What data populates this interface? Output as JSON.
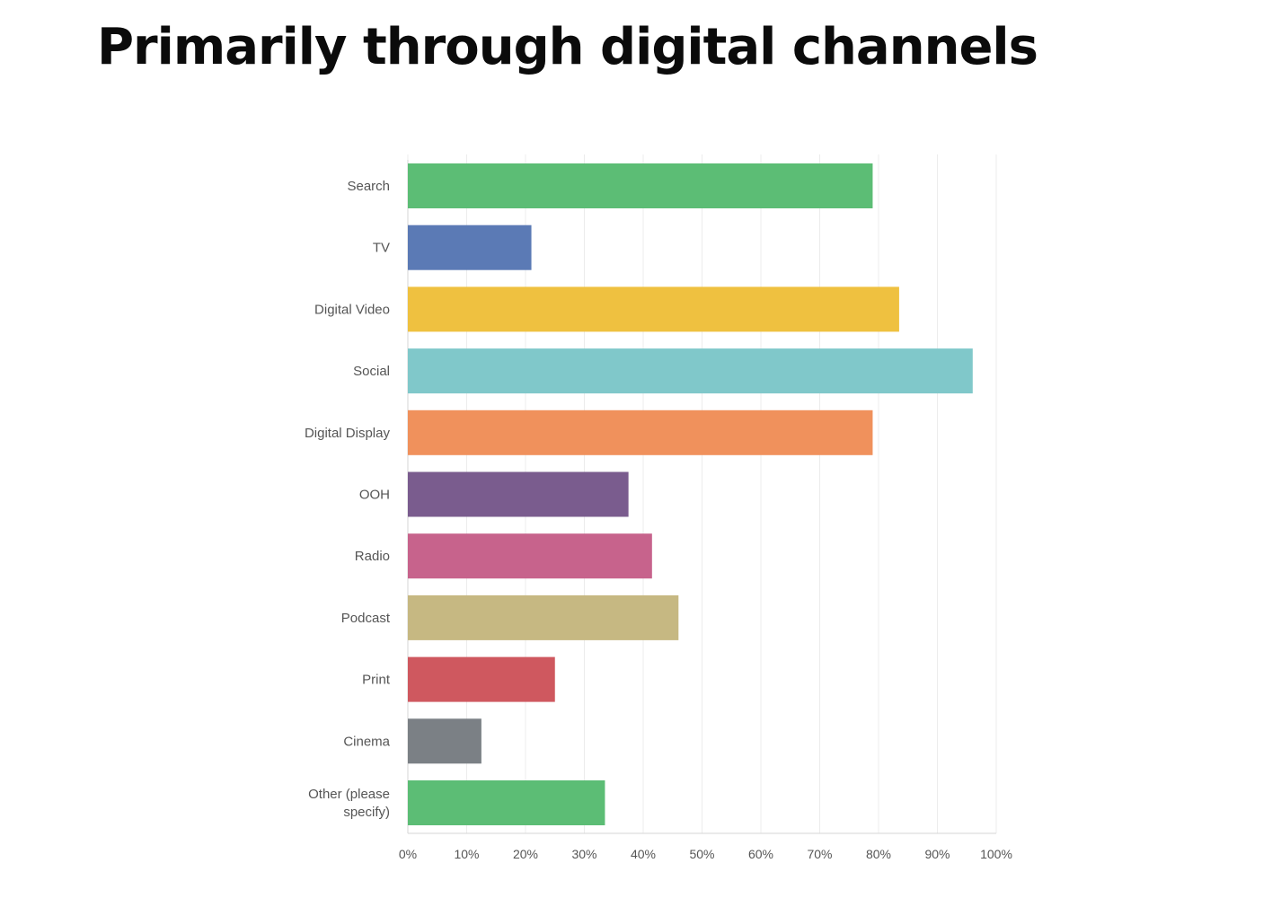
{
  "slide": {
    "title": "Primarily through digital channels"
  },
  "chart_data": {
    "type": "bar",
    "orientation": "horizontal",
    "categories": [
      "Search",
      "TV",
      "Digital Video",
      "Social",
      "Digital Display",
      "OOH",
      "Radio",
      "Podcast",
      "Print",
      "Cinema",
      [
        "Other (please",
        "specify)"
      ]
    ],
    "values": [
      79,
      21,
      83.5,
      96,
      79,
      37.5,
      41.5,
      46,
      25,
      12.5,
      33.5
    ],
    "colors": [
      "#5cbd75",
      "#5b7ab5",
      "#efc140",
      "#80c8ca",
      "#f0915c",
      "#7a5c8e",
      "#c7638c",
      "#c6b882",
      "#cf585f",
      "#7b8085",
      "#5cbd75"
    ],
    "xlim": [
      0,
      100
    ],
    "xticks": [
      "0%",
      "10%",
      "20%",
      "30%",
      "40%",
      "50%",
      "60%",
      "70%",
      "80%",
      "90%",
      "100%"
    ],
    "grid": true,
    "xlabel": "",
    "ylabel": ""
  }
}
